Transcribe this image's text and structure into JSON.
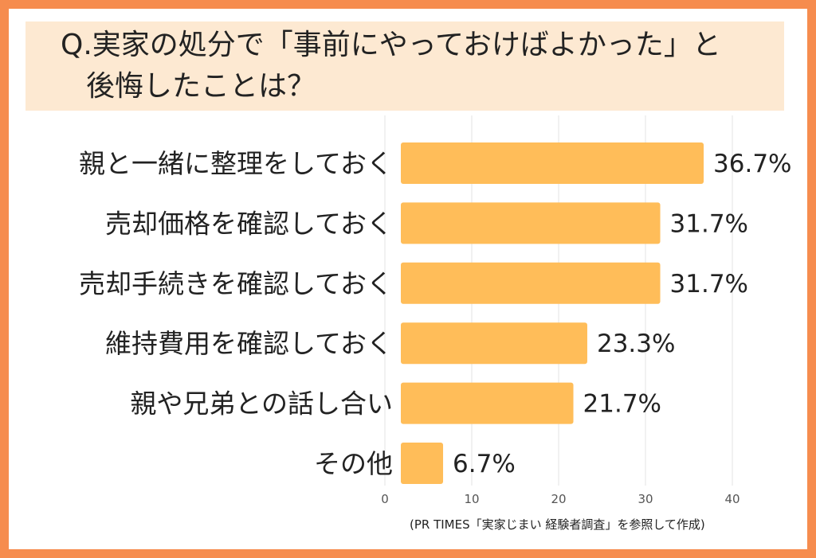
{
  "title": {
    "line1": "Q.実家の処分で「事前にやっておけばよかった」と",
    "line2": "後悔したことは？"
  },
  "source": "(PR TIMES「実家じまい 経験者調査」を参照して作成)",
  "colors": {
    "frame": "#f68c4e",
    "title_bg": "#fde9d2",
    "bar": "#ffbd59",
    "grid": "#e3e3e3"
  },
  "chart_data": {
    "type": "bar",
    "orientation": "horizontal",
    "categories": [
      "親と一緒に整理をしておく",
      "売却価格を確認しておく",
      "売却手続きを確認しておく",
      "維持費用を確認しておく",
      "親や兄弟との話し合い",
      "その他"
    ],
    "values": [
      36.7,
      31.7,
      31.7,
      23.3,
      21.7,
      6.7
    ],
    "value_labels": [
      "36.7%",
      "31.7%",
      "31.7%",
      "23.3%",
      "21.7%",
      "6.7%"
    ],
    "xlim": [
      0,
      40
    ],
    "xticks": [
      0,
      10,
      20,
      30,
      40
    ],
    "grid": true,
    "legend": "none"
  }
}
